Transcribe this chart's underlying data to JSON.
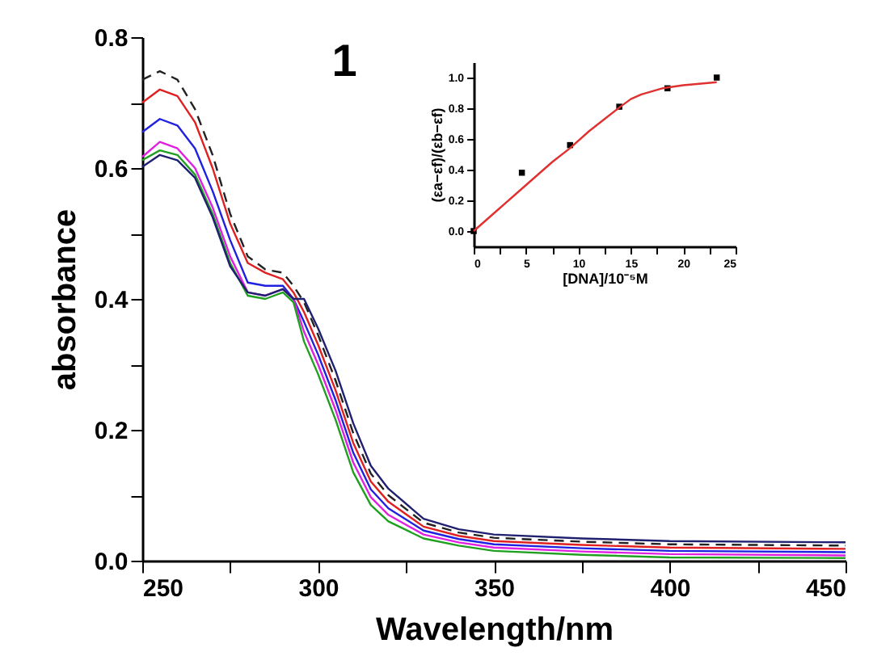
{
  "chart_data": [
    {
      "type": "line",
      "xlabel": "Wavelength/nm",
      "ylabel": "absorbance",
      "annotations": [
        "1"
      ],
      "x": [
        250,
        255,
        260,
        265,
        270,
        275,
        280,
        285,
        290,
        293,
        296,
        300,
        305,
        310,
        315,
        320,
        330,
        340,
        350,
        375,
        400,
        450
      ],
      "xlim": [
        250,
        450
      ],
      "ylim": [
        0,
        0.8
      ],
      "xticks": [
        250,
        {
          "value": 275,
          "label": null
        },
        300,
        {
          "value": 325,
          "label": null
        },
        350,
        {
          "value": 375,
          "label": null
        },
        400,
        {
          "value": 425,
          "label": null
        },
        450
      ],
      "yticks": [
        {
          "value": 0,
          "label": "0.0"
        },
        {
          "value": 0.1,
          "label": null
        },
        0.2,
        {
          "value": 0.3,
          "label": null
        },
        0.4,
        {
          "value": 0.5,
          "label": null
        },
        0.6,
        {
          "value": 0.7,
          "label": null
        },
        0.8
      ],
      "series": [
        {
          "color": "#222222",
          "line_style": "dashed",
          "values": [
            0.735,
            0.748,
            0.735,
            0.69,
            0.62,
            0.53,
            0.465,
            0.445,
            0.44,
            0.42,
            0.395,
            0.345,
            0.275,
            0.195,
            0.133,
            0.1,
            0.058,
            0.043,
            0.035,
            0.029,
            0.025,
            0.023
          ]
        },
        {
          "color": "#e02020",
          "line_style": "solid",
          "values": [
            0.7,
            0.72,
            0.71,
            0.67,
            0.6,
            0.515,
            0.455,
            0.44,
            0.43,
            0.41,
            0.38,
            0.33,
            0.26,
            0.18,
            0.121,
            0.09,
            0.052,
            0.038,
            0.03,
            0.024,
            0.02,
            0.018
          ]
        },
        {
          "color": "#2020e0",
          "line_style": "solid",
          "values": [
            0.655,
            0.675,
            0.665,
            0.63,
            0.565,
            0.49,
            0.425,
            0.42,
            0.42,
            0.4,
            0.365,
            0.315,
            0.245,
            0.165,
            0.109,
            0.08,
            0.046,
            0.033,
            0.025,
            0.019,
            0.015,
            0.013
          ]
        },
        {
          "color": "#e020e0",
          "line_style": "solid",
          "values": [
            0.617,
            0.64,
            0.63,
            0.6,
            0.54,
            0.465,
            0.41,
            0.405,
            0.415,
            0.4,
            0.35,
            0.3,
            0.23,
            0.15,
            0.097,
            0.07,
            0.04,
            0.028,
            0.02,
            0.014,
            0.01,
            0.008
          ]
        },
        {
          "color": "#20a020",
          "line_style": "solid",
          "values": [
            0.612,
            0.627,
            0.62,
            0.59,
            0.53,
            0.455,
            0.405,
            0.4,
            0.41,
            0.395,
            0.335,
            0.285,
            0.215,
            0.135,
            0.085,
            0.06,
            0.034,
            0.023,
            0.015,
            0.009,
            0.005,
            0.004
          ]
        },
        {
          "color": "#202070",
          "line_style": "solid",
          "values": [
            0.602,
            0.62,
            0.612,
            0.585,
            0.525,
            0.45,
            0.41,
            0.405,
            0.415,
            0.4,
            0.4,
            0.355,
            0.29,
            0.21,
            0.145,
            0.11,
            0.064,
            0.048,
            0.04,
            0.034,
            0.03,
            0.028
          ]
        }
      ]
    },
    {
      "type": "scatter",
      "xlabel": "[DNA]/10⁻⁵M",
      "ylabel": "(εa−εf)/(εb−εf)",
      "xlim": [
        0,
        25
      ],
      "ylim": [
        -0.1,
        1.1
      ],
      "xticks": [
        0,
        {
          "value": 2.5,
          "label": null
        },
        5,
        {
          "value": 7.5,
          "label": null
        },
        10,
        {
          "value": 12.5,
          "label": null
        },
        15,
        {
          "value": 17.5,
          "label": null
        },
        20,
        {
          "value": 22.5,
          "label": null
        },
        25
      ],
      "yticks": [
        {
          "value": 0,
          "label": "0.0"
        },
        0.2,
        0.4,
        0.6,
        0.8,
        {
          "value": 1,
          "label": "1.0"
        }
      ],
      "series": [
        {
          "type": "scatter",
          "marker": "square",
          "color": "#000000",
          "x": [
            0,
            4.6,
            9.2,
            13.9,
            18.5,
            23.2
          ],
          "values": [
            0,
            0.38,
            0.56,
            0.81,
            0.93,
            1.0
          ]
        },
        {
          "type": "line",
          "line_style": "solid",
          "color": "#e03030",
          "x": [
            0,
            2.5,
            5,
            7.5,
            9.2,
            11,
            12.5,
            14,
            15,
            16,
            17,
            18,
            20,
            23.2
          ],
          "values": [
            0,
            0.15,
            0.3,
            0.45,
            0.54,
            0.65,
            0.73,
            0.81,
            0.86,
            0.89,
            0.91,
            0.93,
            0.95,
            0.97
          ]
        }
      ]
    }
  ]
}
